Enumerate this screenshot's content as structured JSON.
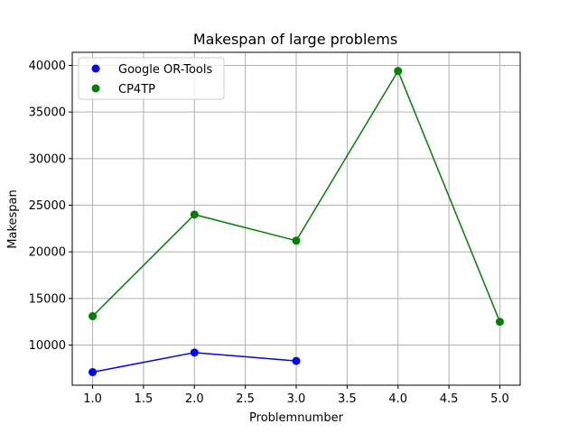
{
  "chart_data": {
    "type": "line",
    "title": "Makespan of large problems",
    "xlabel": "Problemnumber",
    "ylabel": "Makespan",
    "xlim": [
      0.8,
      5.2
    ],
    "ylim": [
      5700,
      41400
    ],
    "xticks": [
      1.0,
      1.5,
      2.0,
      2.5,
      3.0,
      3.5,
      4.0,
      4.5,
      5.0
    ],
    "xtick_labels": [
      "1.0",
      "1.5",
      "2.0",
      "2.5",
      "3.0",
      "3.5",
      "4.0",
      "4.5",
      "5.0"
    ],
    "yticks": [
      10000,
      15000,
      20000,
      25000,
      30000,
      35000,
      40000
    ],
    "ytick_labels": [
      "10000",
      "15000",
      "20000",
      "25000",
      "30000",
      "35000",
      "40000"
    ],
    "grid": true,
    "legend_position": "top-left",
    "series": [
      {
        "name": "Google OR-Tools",
        "color": "#0000ff",
        "x": [
          1,
          2,
          3
        ],
        "y": [
          7100,
          9200,
          8300
        ]
      },
      {
        "name": "CP4TP",
        "color": "#008000",
        "x": [
          1,
          2,
          3,
          4,
          5
        ],
        "y": [
          13100,
          24000,
          21200,
          39400,
          12500
        ]
      }
    ]
  }
}
